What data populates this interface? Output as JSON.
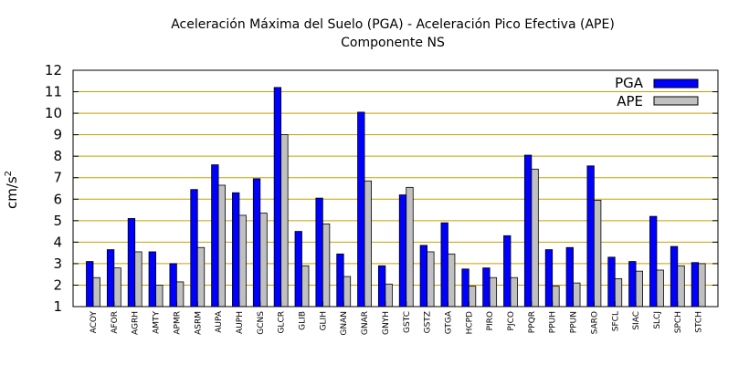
{
  "chart_data": {
    "type": "bar",
    "title": "Aceleración Máxima del Suelo (PGA) -  Aceleración Pico Efectiva (APE)",
    "subtitle": "Componente NS",
    "xlabel": "",
    "ylabel": "cm/s",
    "ylabel_superscript": "2",
    "ylim": [
      1,
      12
    ],
    "yticks": [
      1,
      2,
      3,
      4,
      5,
      6,
      7,
      8,
      9,
      10,
      11,
      12
    ],
    "grid": "horizontal",
    "legend_position": "top-right",
    "categories": [
      "ACOY",
      "AFOR",
      "AGRH",
      "AMTY",
      "APMR",
      "ASRM",
      "AUPA",
      "AUPH",
      "GCNS",
      "GLCR",
      "GLIB",
      "GLIH",
      "GNAN",
      "GNAR",
      "GNYH",
      "GSTC",
      "GSTZ",
      "GTGA",
      "HCPD",
      "PIRO",
      "PJCO",
      "PPQR",
      "PPUH",
      "PPUN",
      "SARO",
      "SFCL",
      "SIAC",
      "SLCJ",
      "SPCH",
      "STCH"
    ],
    "series": [
      {
        "name": "PGA",
        "color": "#0000ff",
        "values": [
          3.1,
          3.65,
          5.1,
          3.55,
          3.0,
          6.45,
          7.6,
          6.3,
          6.95,
          11.2,
          4.5,
          6.05,
          3.45,
          10.05,
          2.9,
          6.2,
          3.85,
          4.9,
          2.75,
          2.8,
          4.3,
          8.05,
          3.65,
          3.75,
          7.55,
          3.3,
          3.1,
          5.2,
          3.8,
          3.05
        ]
      },
      {
        "name": "APE",
        "color": "#c0c0c0",
        "values": [
          2.35,
          2.8,
          3.55,
          2.0,
          2.15,
          3.75,
          6.65,
          5.25,
          5.35,
          9.0,
          2.9,
          4.85,
          2.4,
          6.85,
          2.05,
          6.55,
          3.55,
          3.45,
          1.95,
          2.35,
          2.35,
          7.4,
          1.95,
          2.1,
          5.95,
          2.3,
          2.65,
          2.7,
          2.9,
          3.0
        ]
      }
    ],
    "colors": {
      "grid": "#c8a000",
      "pga": "#0000ff",
      "ape": "#c0c0c0"
    }
  }
}
